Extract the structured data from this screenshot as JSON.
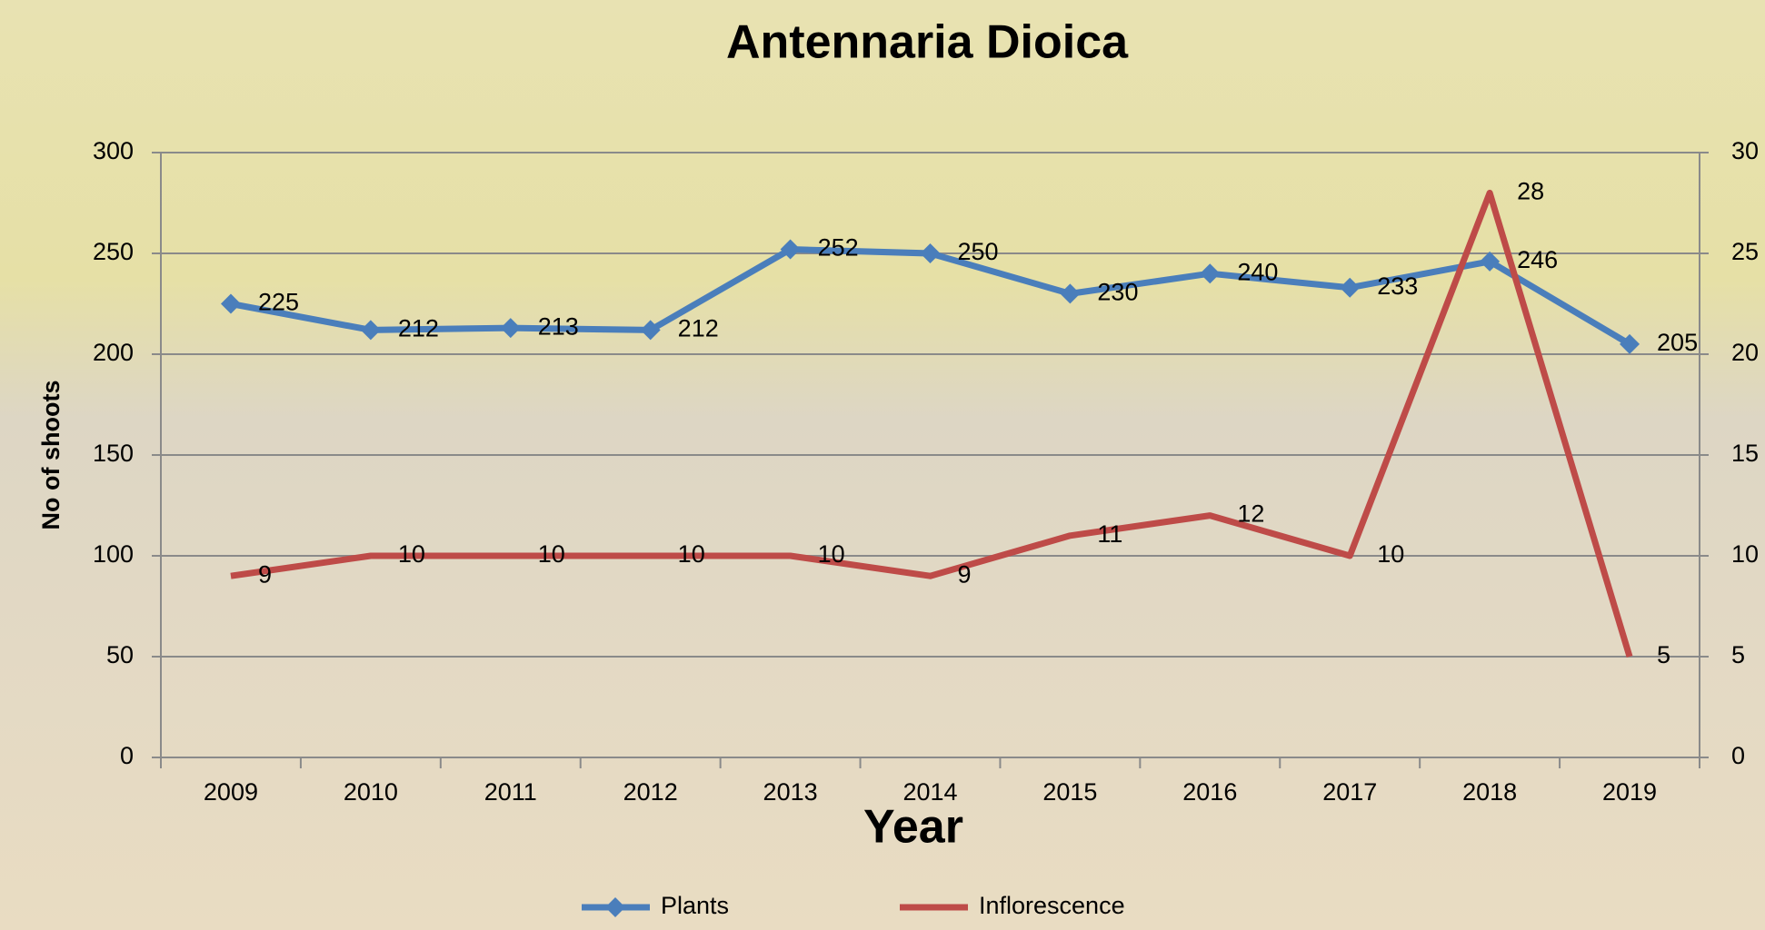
{
  "chart_data": {
    "type": "line",
    "title": "Antennaria Dioica",
    "x_label": "Year",
    "y_label": "No of shoots",
    "categories": [
      "2009",
      "2010",
      "2011",
      "2012",
      "2013",
      "2014",
      "2015",
      "2016",
      "2017",
      "2018",
      "2019"
    ],
    "series": [
      {
        "name": "Plants",
        "color": "#4a7ebb",
        "marker": "diamond",
        "values": [
          225,
          212,
          213,
          212,
          252,
          250,
          230,
          240,
          233,
          246,
          205
        ]
      },
      {
        "name": "Inflorescence",
        "color": "#be4b48",
        "axis": "y2",
        "values": [
          9,
          10,
          10,
          10,
          10,
          9,
          11,
          12,
          10,
          28,
          5
        ]
      }
    ],
    "ylim": [
      0,
      300
    ],
    "yticks": [
      0,
      50,
      100,
      150,
      200,
      250,
      300
    ],
    "y2lim": [
      0,
      30
    ],
    "y2ticks": [
      0,
      5,
      10,
      15,
      20,
      25,
      30
    ],
    "grid": true,
    "legend": "bottom"
  }
}
